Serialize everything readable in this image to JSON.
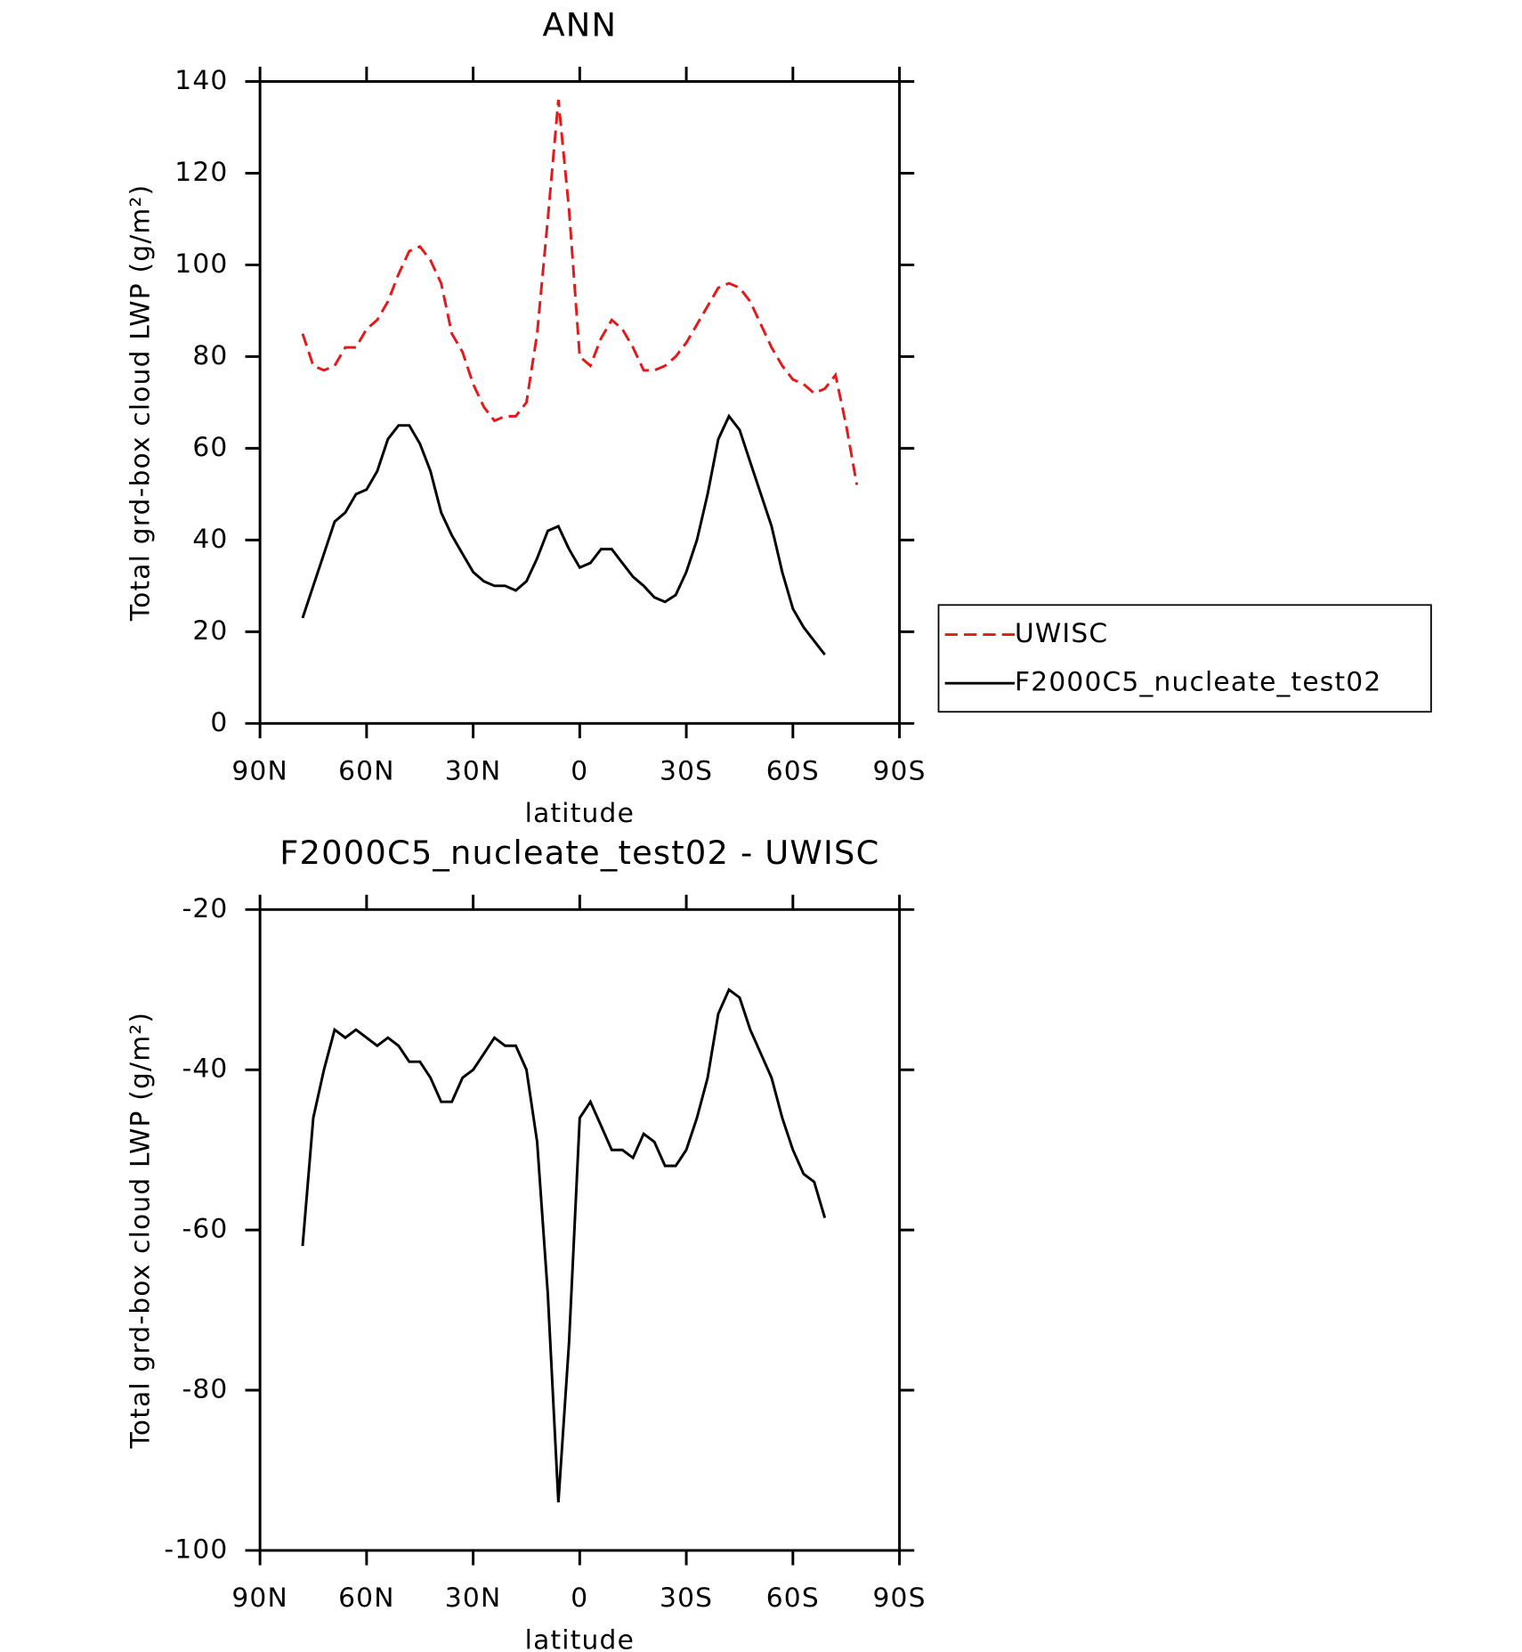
{
  "chart_data": [
    {
      "type": "line",
      "title": "ANN",
      "x_label": "latitude",
      "y_label": "Total grd-box cloud LWP (g/m²)",
      "x": [
        78,
        75,
        72,
        69,
        66,
        63,
        60,
        57,
        54,
        51,
        48,
        45,
        42,
        39,
        36,
        33,
        30,
        27,
        24,
        21,
        18,
        15,
        12,
        9,
        6,
        3,
        0,
        -3,
        -6,
        -9,
        -12,
        -15,
        -18,
        -21,
        -24,
        -27,
        -30,
        -33,
        -36,
        -39,
        -42,
        -45,
        -48,
        -51,
        -54,
        -57,
        -60,
        -63,
        -66,
        -69,
        -72,
        -75,
        -78
      ],
      "xlim": [
        90,
        -90
      ],
      "xticks": [
        {
          "value": 90,
          "label": "90N"
        },
        {
          "value": 60,
          "label": "60N"
        },
        {
          "value": 30,
          "label": "30N"
        },
        0,
        {
          "value": -30,
          "label": "30S"
        },
        {
          "value": -60,
          "label": "60S"
        },
        {
          "value": -90,
          "label": "90S"
        }
      ],
      "ylim": [
        0,
        140
      ],
      "yticks": [
        0,
        20,
        40,
        60,
        80,
        100,
        120,
        140
      ],
      "legend": "right",
      "series": [
        {
          "name": "UWISC",
          "color": "#e31a1c",
          "linestyle": "dashed",
          "values": [
            85,
            78,
            77,
            78,
            82,
            82,
            86,
            88,
            92,
            98,
            103,
            104,
            101,
            96,
            85,
            81,
            74,
            69,
            66,
            67,
            67,
            70,
            85,
            110,
            136,
            112,
            80,
            78,
            84,
            88,
            86,
            82,
            77,
            77,
            78,
            80,
            83,
            87,
            91,
            95,
            96,
            95,
            92,
            87,
            82,
            78,
            75,
            74,
            72,
            73,
            76,
            65,
            52
          ]
        },
        {
          "name": "F2000C5_nucleate_test02",
          "color": "#000000",
          "linestyle": "solid",
          "values": [
            23,
            30,
            37,
            44,
            46,
            50,
            51,
            55,
            62,
            65,
            65,
            61,
            55,
            46,
            41,
            37,
            33,
            31,
            30,
            30,
            29,
            31,
            36,
            42,
            43,
            38,
            34,
            35,
            38,
            38,
            35,
            32,
            30,
            27.5,
            26.5,
            28,
            33,
            40,
            50,
            62,
            67,
            64,
            57,
            50,
            43,
            33,
            25,
            21,
            18,
            15,
            null,
            null,
            null
          ]
        }
      ]
    },
    {
      "type": "line",
      "title": "F2000C5_nucleate_test02 - UWISC",
      "x_label": "latitude",
      "y_label": "Total grd-box cloud LWP (g/m²)",
      "x": [
        78,
        75,
        72,
        69,
        66,
        63,
        60,
        57,
        54,
        51,
        48,
        45,
        42,
        39,
        36,
        33,
        30,
        27,
        24,
        21,
        18,
        15,
        12,
        9,
        6,
        3,
        0,
        -3,
        -6,
        -9,
        -12,
        -15,
        -18,
        -21,
        -24,
        -27,
        -30,
        -33,
        -36,
        -39,
        -42,
        -45,
        -48,
        -51,
        -54,
        -57,
        -60,
        -63,
        -66,
        -69,
        -72,
        -75,
        -78
      ],
      "xlim": [
        90,
        -90
      ],
      "xticks": [
        {
          "value": 90,
          "label": "90N"
        },
        {
          "value": 60,
          "label": "60N"
        },
        {
          "value": 30,
          "label": "30N"
        },
        0,
        {
          "value": -30,
          "label": "30S"
        },
        {
          "value": -60,
          "label": "60S"
        },
        {
          "value": -90,
          "label": "90S"
        }
      ],
      "ylim": [
        -100,
        -20
      ],
      "yticks": [
        -100,
        -80,
        -60,
        -40,
        -20
      ],
      "series": [
        {
          "color": "#000000",
          "linestyle": "solid",
          "values": [
            -62,
            -46,
            -40,
            -35,
            -36,
            -35,
            -36,
            -37,
            -36,
            -37,
            -39,
            -39,
            -41,
            -44,
            -44,
            -41,
            -40,
            -38,
            -36,
            -37,
            -37,
            -40,
            -49,
            -68,
            -94,
            -74,
            -46,
            -44,
            -47,
            -50,
            -50,
            -51,
            -48,
            -49,
            -52,
            -52,
            -50,
            -46,
            -41,
            -33,
            -30,
            -31,
            -35,
            -38,
            -41,
            -46,
            -50,
            -53,
            -54,
            -58.5,
            null,
            null,
            null
          ]
        }
      ]
    }
  ]
}
